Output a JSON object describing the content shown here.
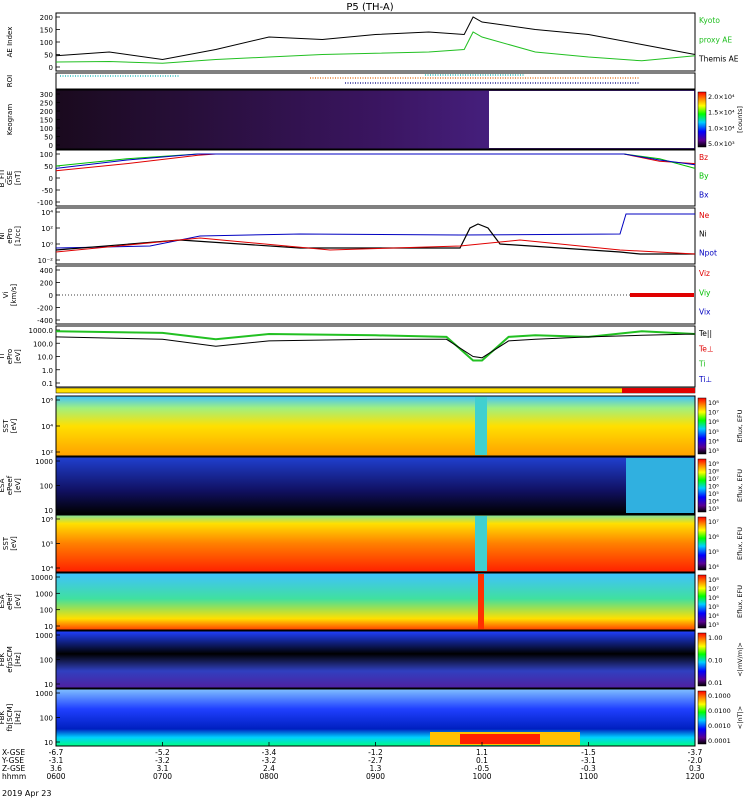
{
  "title": "P5 (TH-A)",
  "date_label": "2019 Apr 23",
  "colors": {
    "ae_kyoto": "#22c022",
    "ae_themis": "#000000",
    "bz": "#e00000",
    "by": "#00c000",
    "bx": "#0000c0",
    "te_para": "#000000",
    "ti": "#22c022",
    "spec_high": "#e00000",
    "spec_low": "#000080"
  },
  "panels": [
    {
      "id": "ae",
      "ylabel": "AE Index",
      "yticks": [
        "200",
        "150",
        "100",
        "50",
        "0"
      ],
      "legend": [
        {
          "text": "Kyoto",
          "color": "#22c022"
        },
        {
          "text": "proxy AE",
          "color": "#22c022"
        },
        {
          "text": "Themis AE",
          "color": "#000000"
        }
      ]
    },
    {
      "id": "roi",
      "ylabel": "ROI",
      "yticks": [],
      "legend": []
    },
    {
      "id": "keogram",
      "ylabel": "Keogram",
      "yticks": [
        "300",
        "250",
        "200",
        "150",
        "100",
        "50",
        "0"
      ],
      "colorbar": {
        "ticks": [
          "2.0×10⁴",
          "1.5×10⁴",
          "1.0×10⁴",
          "5.0×10³"
        ],
        "unit": "[counts]"
      }
    },
    {
      "id": "bfit",
      "ylabel": "B_FIT\nGSE\n[nT]",
      "yticks": [
        "100",
        "50",
        "0",
        "-50",
        "-100"
      ],
      "legend": [
        {
          "text": "Bz",
          "color": "#e00000"
        },
        {
          "text": "By",
          "color": "#00c000"
        },
        {
          "text": "Bx",
          "color": "#0000c0"
        }
      ]
    },
    {
      "id": "ni",
      "ylabel": "Ni\nePro\n[1/cc]",
      "yticks": [
        "10⁴",
        "10²",
        "10⁰",
        "10⁻²"
      ],
      "legend": [
        {
          "text": "Ne",
          "color": "#e00000"
        },
        {
          "text": "Ni",
          "color": "#000000"
        },
        {
          "text": "Npot",
          "color": "#0000c0"
        }
      ]
    },
    {
      "id": "vi",
      "ylabel": "Vi\n[km/s]",
      "yticks": [
        "400",
        "200",
        "0",
        "-200",
        "-400"
      ],
      "legend": [
        {
          "text": "Viz",
          "color": "#e00000"
        },
        {
          "text": "Viy",
          "color": "#00c000"
        },
        {
          "text": "Vix",
          "color": "#0000c0"
        }
      ]
    },
    {
      "id": "ti",
      "ylabel": "Ti\nePro\n[eV]",
      "yticks": [
        "1000.0",
        "100.0",
        "10.0",
        "1.0",
        "0.1"
      ],
      "legend": [
        {
          "text": "Te||",
          "color": "#000000"
        },
        {
          "text": "Te⊥",
          "color": "#e00000"
        },
        {
          "text": "Ti",
          "color": "#22c022"
        },
        {
          "text": "Ti⊥",
          "color": "#0000c0"
        }
      ]
    },
    {
      "id": "sst_e",
      "ylabel": "SST\n[eV]",
      "yticks": [
        "10⁶",
        "10⁴",
        "10²"
      ],
      "colorbar": {
        "ticks": [
          "10⁸",
          "10⁷",
          "10⁶",
          "10⁵",
          "10⁴",
          "10³"
        ],
        "unit": "Eflux, EFU"
      }
    },
    {
      "id": "esa_e",
      "ylabel": "ESA\nePeef\n[eV]",
      "yticks": [
        "1000",
        "100",
        "10"
      ],
      "colorbar": {
        "ticks": [
          "10⁹",
          "10⁸",
          "10⁷",
          "10⁶",
          "10⁵",
          "10⁴",
          "10³"
        ],
        "unit": "Eflux, EFU"
      }
    },
    {
      "id": "sst_i",
      "ylabel": "SST\n[eV]",
      "yticks": [
        "10⁶",
        "10⁵",
        "10⁴"
      ],
      "colorbar": {
        "ticks": [
          "10⁷",
          "10⁶",
          "10⁵",
          "10⁴"
        ],
        "unit": "Eflux, EFU"
      }
    },
    {
      "id": "esa_i",
      "ylabel": "ESA\nePeif\n[eV]",
      "yticks": [
        "10000",
        "1000",
        "100",
        "10"
      ],
      "colorbar": {
        "ticks": [
          "10⁸",
          "10⁷",
          "10⁶",
          "10⁵",
          "10⁴",
          "10³"
        ],
        "unit": "Eflux, EFU"
      }
    },
    {
      "id": "fbk_e",
      "ylabel": "FBK\nefpSCM\n[Hz]",
      "yticks": [
        "1000",
        "100",
        "10"
      ],
      "colorbar": {
        "ticks": [
          "1.00",
          "0.10",
          "0.01"
        ],
        "unit": "<|mV/m|>"
      }
    },
    {
      "id": "fbk_b",
      "ylabel": "FBK\nfb[SCM]\n[Hz]",
      "yticks": [
        "1000",
        "100",
        "10"
      ],
      "colorbar": {
        "ticks": [
          "0.1000",
          "0.0100",
          "0.0010",
          "0.0001"
        ],
        "unit": "<|nT|>"
      }
    }
  ],
  "xaxis": {
    "row_labels": [
      "X-GSE",
      "Y-GSE",
      "Z-GSE",
      "hhmm"
    ],
    "ticks": [
      {
        "x": "-6.7",
        "y": "-3.1",
        "z": "3.6",
        "t": "0600"
      },
      {
        "x": "-5.2",
        "y": "-3.2",
        "z": "3.1",
        "t": "0700"
      },
      {
        "x": "-3.4",
        "y": "-3.2",
        "z": "2.4",
        "t": "0800"
      },
      {
        "x": "-1.2",
        "y": "-2.7",
        "z": "1.3",
        "t": "0900"
      },
      {
        "x": "1.1",
        "y": "0.1",
        "z": "-0.5",
        "t": "1000"
      },
      {
        "x": "-1.5",
        "y": "-3.1",
        "z": "-0.3",
        "t": "1100"
      },
      {
        "x": "-3.7",
        "y": "-2.0",
        "z": "0.3",
        "t": "1200"
      }
    ]
  },
  "chart_data": {
    "type": "line",
    "title": "P5 (TH-A)",
    "x_unit": "hhmm, 2019 Apr 23",
    "xlim": [
      "0600",
      "1200"
    ],
    "series": [
      {
        "name": "Themis AE",
        "panel": "ae",
        "x": [
          "0600",
          "0630",
          "0700",
          "0730",
          "0800",
          "0830",
          "0900",
          "0930",
          "0950",
          "0955",
          "1000",
          "1030",
          "1100",
          "1130",
          "1200"
        ],
        "values": [
          45,
          60,
          30,
          70,
          120,
          110,
          130,
          140,
          130,
          200,
          180,
          150,
          130,
          90,
          50
        ]
      },
      {
        "name": "Kyoto proxy AE",
        "panel": "ae",
        "x": [
          "0600",
          "0630",
          "0700",
          "0730",
          "0800",
          "0830",
          "0900",
          "0930",
          "0950",
          "0955",
          "1000",
          "1030",
          "1100",
          "1130",
          "1200"
        ],
        "values": [
          20,
          22,
          15,
          30,
          40,
          50,
          55,
          60,
          70,
          140,
          120,
          60,
          40,
          25,
          45
        ]
      },
      {
        "name": "Bz",
        "panel": "bfit",
        "x": [
          "0600",
          "0640",
          "0720",
          "0730",
          "1120",
          "1140",
          "1200"
        ],
        "values": [
          30,
          60,
          95,
          100,
          100,
          70,
          60
        ]
      },
      {
        "name": "By",
        "panel": "bfit",
        "x": [
          "0600",
          "0640",
          "0720",
          "0730",
          "1120",
          "1140",
          "1200"
        ],
        "values": [
          50,
          80,
          100,
          100,
          100,
          80,
          40
        ]
      },
      {
        "name": "Bx",
        "panel": "bfit",
        "x": [
          "0600",
          "0640",
          "0720",
          "0730",
          "1120",
          "1140",
          "1200"
        ],
        "values": [
          40,
          75,
          100,
          100,
          100,
          75,
          55
        ]
      },
      {
        "name": "Ti",
        "panel": "ti",
        "x": [
          "0600",
          "0700",
          "0730",
          "0800",
          "0900",
          "0940",
          "0955",
          "1000",
          "1015",
          "1030",
          "1100",
          "1130",
          "1200"
        ],
        "values": [
          800,
          600,
          200,
          500,
          400,
          300,
          5,
          5,
          300,
          400,
          300,
          800,
          500
        ]
      },
      {
        "name": "Te||",
        "panel": "ti",
        "x": [
          "0600",
          "0700",
          "0730",
          "0800",
          "0900",
          "0940",
          "0955",
          "1000",
          "1015",
          "1030",
          "1100",
          "1130",
          "1200"
        ],
        "values": [
          300,
          200,
          60,
          150,
          200,
          200,
          10,
          8,
          150,
          200,
          300,
          400,
          500
        ]
      }
    ]
  }
}
